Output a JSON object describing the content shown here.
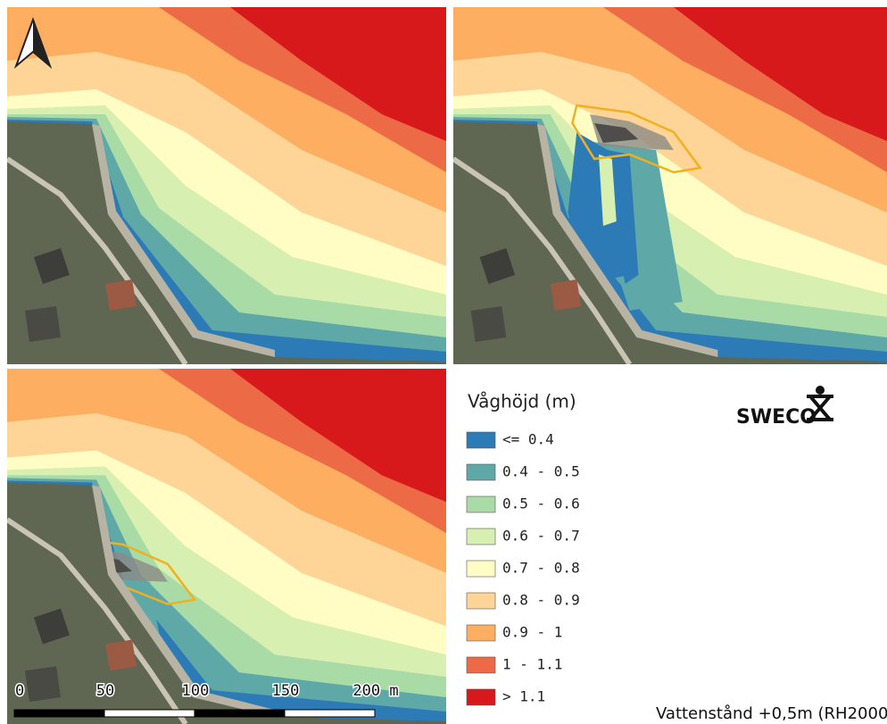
{
  "legend": {
    "title": "Våghöjd (m)",
    "items": [
      {
        "label": "<= 0.4",
        "color": "#2c7bb6"
      },
      {
        "label": "0.4 - 0.5",
        "color": "#5fa8a8"
      },
      {
        "label": "0.5 - 0.6",
        "color": "#a9dba6"
      },
      {
        "label": "0.6 - 0.7",
        "color": "#d8efb2"
      },
      {
        "label": "0.7 - 0.8",
        "color": "#fffcc4"
      },
      {
        "label": "0.8 - 0.9",
        "color": "#fed597"
      },
      {
        "label": "0.9 - 1",
        "color": "#fdae61"
      },
      {
        "label": "1 - 1.1",
        "color": "#ec6a45"
      },
      {
        "label": "> 1.1",
        "color": "#d7191c"
      }
    ]
  },
  "scale_bar": {
    "labels": [
      "0",
      "50",
      "100",
      "150",
      "200 m"
    ]
  },
  "logo": {
    "text": "SWECO"
  },
  "footer": "Vattenstånd +0,5m (RH2000"
}
